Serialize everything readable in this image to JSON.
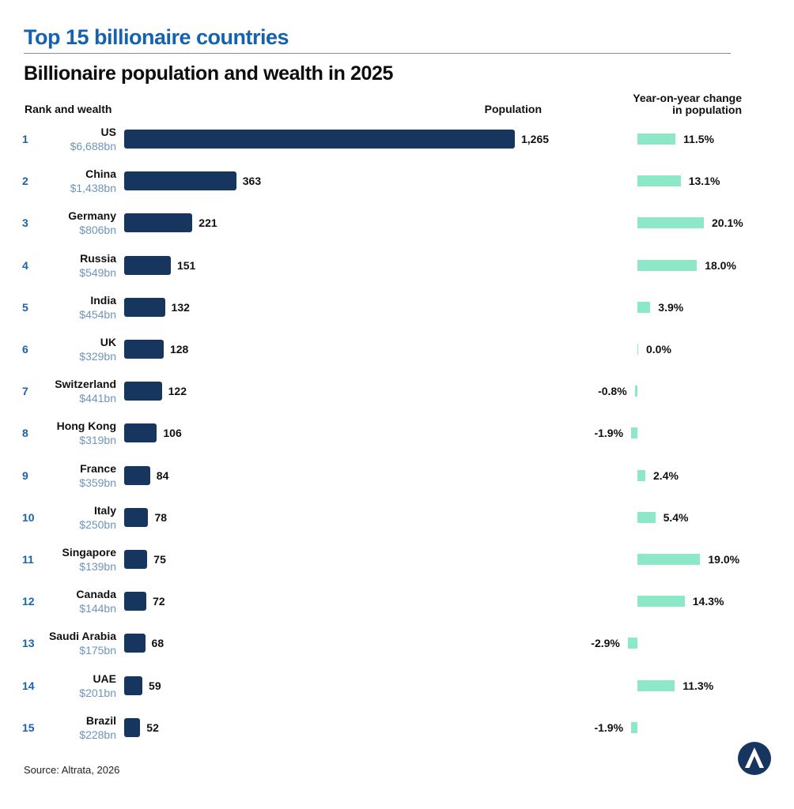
{
  "header": {
    "title": "Top 15 billionaire countries",
    "subtitle": "Billionaire population and wealth in 2025"
  },
  "columns": {
    "rank_wealth": "Rank and wealth",
    "population": "Population",
    "yoy_line1": "Year-on-year change",
    "yoy_line2": "in population"
  },
  "chart_data": {
    "type": "bar",
    "orientation": "horizontal",
    "categories": [
      "US",
      "China",
      "Germany",
      "Russia",
      "India",
      "UK",
      "Switzerland",
      "Hong Kong",
      "France",
      "Italy",
      "Singapore",
      "Canada",
      "Saudi Arabia",
      "UAE",
      "Brazil"
    ],
    "ranks": [
      "1",
      "2",
      "3",
      "4",
      "5",
      "6",
      "7",
      "8",
      "9",
      "10",
      "11",
      "12",
      "13",
      "14",
      "15"
    ],
    "wealth": [
      "$6,688bn",
      "$1,438bn",
      "$806bn",
      "$549bn",
      "$454bn",
      "$329bn",
      "$441bn",
      "$319bn",
      "$359bn",
      "$250bn",
      "$139bn",
      "$144bn",
      "$175bn",
      "$201bn",
      "$228bn"
    ],
    "series": [
      {
        "name": "Population",
        "values": [
          1265,
          363,
          221,
          151,
          132,
          128,
          122,
          106,
          84,
          78,
          75,
          72,
          68,
          59,
          52
        ],
        "labels": [
          "1,265",
          "363",
          "221",
          "151",
          "132",
          "128",
          "122",
          "106",
          "84",
          "78",
          "75",
          "72",
          "68",
          "59",
          "52"
        ]
      },
      {
        "name": "Year-on-year change in population",
        "values": [
          11.5,
          13.1,
          20.1,
          18.0,
          3.9,
          0.0,
          -0.8,
          -1.9,
          2.4,
          5.4,
          19.0,
          14.3,
          -2.9,
          11.3,
          -1.9
        ],
        "labels": [
          "11.5%",
          "13.1%",
          "20.1%",
          "18.0%",
          "3.9%",
          "0.0%",
          "-0.8%",
          "-1.9%",
          "2.4%",
          "5.4%",
          "19.0%",
          "14.3%",
          "-2.9%",
          "11.3%",
          "-1.9%"
        ]
      }
    ],
    "colors": {
      "population_bar": "#16355f",
      "yoy_bar": "#8de8c8",
      "rank_text": "#1c63a8",
      "wealth_text": "#6e95b9",
      "title": "#1462b0"
    }
  },
  "footer": {
    "source": "Source: Altrata, 2026",
    "logo_icon": "altrata-logo-icon"
  }
}
